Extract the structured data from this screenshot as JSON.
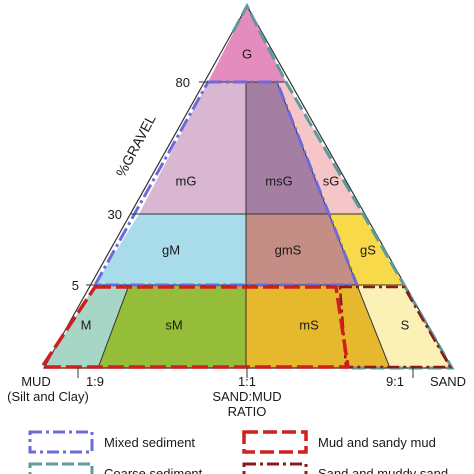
{
  "diagram": {
    "axis_label_gravel": "%GRAVEL",
    "gravel_ticks": [
      "80",
      "30",
      "5"
    ],
    "bottom_labels": {
      "mud_line1": "MUD",
      "mud_line2": "(Silt and Clay)",
      "ratio_1_9": "1:9",
      "ratio_1_1": "1:1",
      "ratio_9_1": "9:1",
      "sand": "SAND",
      "axis_line1": "SAND:MUD",
      "axis_line2": "RATIO"
    },
    "zones": [
      {
        "code": "G",
        "color": "#e58cbf"
      },
      {
        "code": "mG",
        "color": "#d9b7d2"
      },
      {
        "code": "msG",
        "color": "#a57fa3"
      },
      {
        "code": "sG",
        "color": "#f5c5c8"
      },
      {
        "code": "gM",
        "color": "#a9dceb"
      },
      {
        "code": "gmS",
        "color": "#c48d86"
      },
      {
        "code": "gS",
        "color": "#f7d94a"
      },
      {
        "code": "M",
        "color": "#a8d6c6"
      },
      {
        "code": "sM",
        "color": "#96bd3a"
      },
      {
        "code": "mS",
        "color": "#e6b82d"
      },
      {
        "code": "S",
        "color": "#fbf1b6"
      }
    ]
  },
  "legend": {
    "items": [
      {
        "label": "Mixed sediment",
        "color": "#6b6bd9",
        "style": "dash-dot"
      },
      {
        "label": "Mud and sandy mud",
        "color": "#d11f1f",
        "style": "dashed"
      },
      {
        "label": "Coarse sediment",
        "color": "#5f9a9a",
        "style": "dashed"
      },
      {
        "label": "Sand and muddy sand",
        "color": "#8b1a1a",
        "style": "dash-dot"
      }
    ]
  }
}
